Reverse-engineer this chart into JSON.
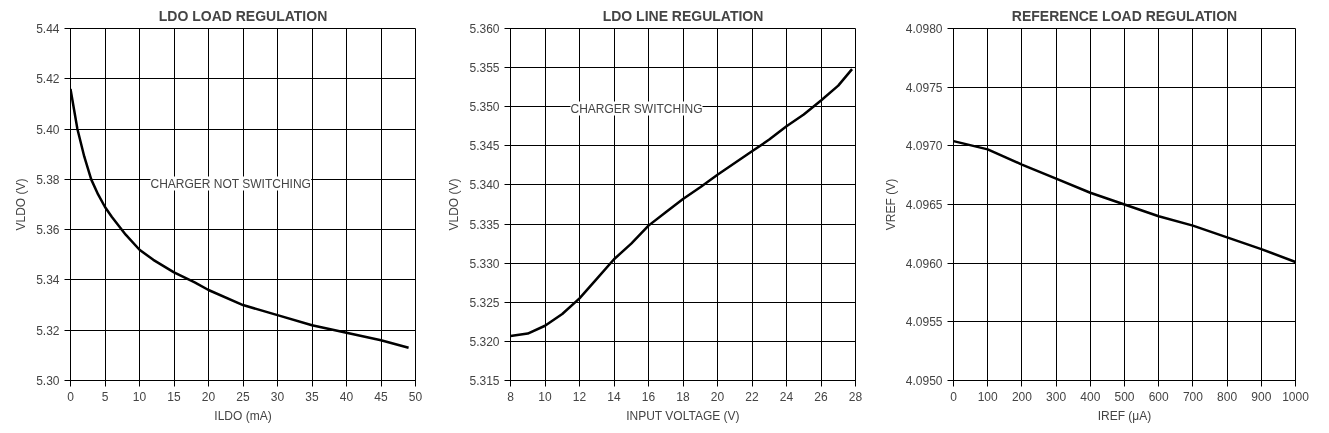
{
  "chart_data": [
    {
      "type": "line",
      "title": "LDO LOAD REGULATION",
      "xlabel": "ILDO (mA)",
      "ylabel": "VLDO (V)",
      "xlim": [
        0,
        50
      ],
      "xticks": [
        0,
        5,
        10,
        15,
        20,
        25,
        30,
        35,
        40,
        45,
        50
      ],
      "ylim": [
        5.3,
        5.44
      ],
      "yticks": [
        {
          "value": 5.3,
          "label": "5.30"
        },
        {
          "value": 5.32,
          "label": "5.32"
        },
        {
          "value": 5.34,
          "label": "5.34"
        },
        {
          "value": 5.36,
          "label": "5.36"
        },
        {
          "value": 5.38,
          "label": "5.38"
        },
        {
          "value": 5.4,
          "label": "5.40"
        },
        {
          "value": 5.42,
          "label": "5.42"
        },
        {
          "value": 5.44,
          "label": "5.44"
        }
      ],
      "grid": true,
      "annotations": [
        "CHARGER NOT SWITCHING"
      ],
      "series": [
        {
          "color": "#000000",
          "x": [
            0,
            0.5,
            1,
            2,
            3,
            4,
            5,
            6,
            8,
            10,
            12,
            15,
            18,
            20,
            25,
            30,
            35,
            40,
            45,
            49
          ],
          "values": [
            5.416,
            5.408,
            5.4,
            5.389,
            5.38,
            5.374,
            5.369,
            5.365,
            5.358,
            5.352,
            5.348,
            5.343,
            5.339,
            5.336,
            5.33,
            5.326,
            5.322,
            5.319,
            5.316,
            5.313
          ]
        }
      ]
    },
    {
      "type": "line",
      "title": "LDO LINE REGULATION",
      "xlabel": "INPUT VOLTAGE (V)",
      "ylabel": "VLDO (V)",
      "xlim": [
        8,
        28
      ],
      "xticks": [
        8,
        10,
        12,
        14,
        16,
        18,
        20,
        22,
        24,
        26,
        28
      ],
      "ylim": [
        5.315,
        5.36
      ],
      "yticks": [
        {
          "value": 5.315,
          "label": "5.315"
        },
        {
          "value": 5.32,
          "label": "5.320"
        },
        {
          "value": 5.325,
          "label": "5.325"
        },
        {
          "value": 5.33,
          "label": "5.330"
        },
        {
          "value": 5.335,
          "label": "5.335"
        },
        {
          "value": 5.34,
          "label": "5.340"
        },
        {
          "value": 5.345,
          "label": "5.345"
        },
        {
          "value": 5.35,
          "label": "5.350"
        },
        {
          "value": 5.355,
          "label": "5.355"
        },
        {
          "value": 5.36,
          "label": "5.360"
        }
      ],
      "grid": true,
      "annotations": [
        "CHARGER SWITCHING"
      ],
      "series": [
        {
          "color": "#000000",
          "x": [
            8,
            9,
            10,
            11,
            12,
            13,
            14,
            15,
            16,
            17,
            18,
            19,
            20,
            21,
            22,
            23,
            24,
            25,
            26,
            27,
            27.8
          ],
          "values": [
            5.3207,
            5.321,
            5.322,
            5.3235,
            5.3255,
            5.328,
            5.3305,
            5.3325,
            5.3348,
            5.3365,
            5.3382,
            5.3397,
            5.3413,
            5.3428,
            5.3443,
            5.3458,
            5.3475,
            5.349,
            5.3508,
            5.3527,
            5.3548
          ]
        }
      ]
    },
    {
      "type": "line",
      "title": "REFERENCE LOAD REGULATION",
      "xlabel": "IREF (μA)",
      "ylabel": "VREF (V)",
      "xlim": [
        0,
        1000
      ],
      "xticks": [
        0,
        100,
        200,
        300,
        400,
        500,
        600,
        700,
        800,
        900,
        1000
      ],
      "ylim": [
        4.095,
        4.098
      ],
      "yticks": [
        {
          "value": 4.095,
          "label": "4.0950"
        },
        {
          "value": 4.0955,
          "label": "4.0955"
        },
        {
          "value": 4.096,
          "label": "4.0960"
        },
        {
          "value": 4.0965,
          "label": "4.0965"
        },
        {
          "value": 4.097,
          "label": "4.0970"
        },
        {
          "value": 4.0975,
          "label": "4.0975"
        },
        {
          "value": 4.098,
          "label": "4.0980"
        }
      ],
      "grid": true,
      "series": [
        {
          "color": "#000000",
          "x": [
            0,
            100,
            200,
            300,
            400,
            500,
            600,
            700,
            800,
            900,
            1000
          ],
          "values": [
            4.09704,
            4.09697,
            4.09684,
            4.09672,
            4.0966,
            4.0965,
            4.0964,
            4.09632,
            4.09622,
            4.09612,
            4.09601
          ]
        }
      ]
    }
  ]
}
